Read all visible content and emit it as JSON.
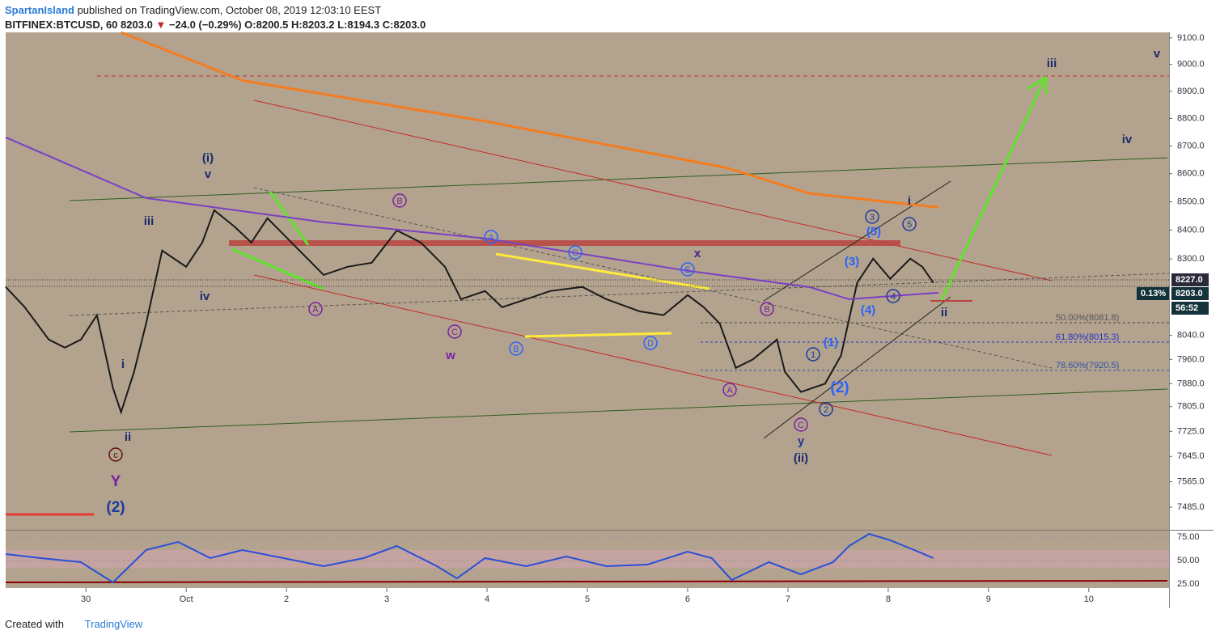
{
  "header": {
    "author": "SpartanIsland",
    "published": " published on TradingView.com, October 08, 2019 12:03:10 EEST",
    "symbol": "BITFINEX:BTCUSD, 60",
    "last": "8203.0",
    "arrow": "▼",
    "change": "−24.0 (−0.29%)",
    "open": "O:8200.5",
    "high": "H:8203.2",
    "low": "L:8194.3",
    "close": "C:8203.0"
  },
  "footer": {
    "created": "Created with",
    "brand": "TradingView"
  },
  "chart_data": {
    "type": "line",
    "log_scale": true,
    "background": "#b3a38e",
    "xlim": [
      -0.8,
      10.8
    ],
    "xticks": [
      {
        "value": 0,
        "label": "30"
      },
      {
        "value": 1,
        "label": "Oct"
      },
      {
        "value": 2,
        "label": "2"
      },
      {
        "value": 3,
        "label": "3"
      },
      {
        "value": 4,
        "label": "4"
      },
      {
        "value": 5,
        "label": "5"
      },
      {
        "value": 6,
        "label": "6"
      },
      {
        "value": 7,
        "label": "7"
      },
      {
        "value": 8,
        "label": "8"
      },
      {
        "value": 9,
        "label": "9"
      },
      {
        "value": 10,
        "label": "10"
      }
    ],
    "ylim": [
      7415,
      9121
    ],
    "yticks": [
      {
        "value": 9100,
        "label": "9100.0"
      },
      {
        "value": 9000,
        "label": "9000.0"
      },
      {
        "value": 8900,
        "label": "8900.0"
      },
      {
        "value": 8800,
        "label": "8800.0"
      },
      {
        "value": 8700,
        "label": "8700.0"
      },
      {
        "value": 8600,
        "label": "8600.0"
      },
      {
        "value": 8500,
        "label": "8500.0"
      },
      {
        "value": 8400,
        "label": "8400.0"
      },
      {
        "value": 8300,
        "label": "8300.0"
      },
      {
        "value": 8040,
        "label": "8040.0"
      },
      {
        "value": 7960,
        "label": "7960.0"
      },
      {
        "value": 7880,
        "label": "7880.0"
      },
      {
        "value": 7805,
        "label": "7805.0"
      },
      {
        "value": 7725,
        "label": "7725.0"
      },
      {
        "value": 7645,
        "label": "7645.0"
      },
      {
        "value": 7565,
        "label": "7565.0"
      },
      {
        "value": 7485,
        "label": "7485.0"
      }
    ],
    "series": [
      {
        "color": "#1a1a1a",
        "x": [
          -0.8,
          -0.61,
          -0.37,
          -0.21,
          -0.05,
          0.11,
          0.27,
          0.35,
          0.48,
          0.6,
          0.76,
          1.0,
          1.16,
          1.28,
          1.48,
          1.65,
          1.81,
          2.05,
          2.21,
          2.37,
          2.61,
          2.85,
          3.1,
          3.34,
          3.58,
          3.74,
          3.98,
          4.15,
          4.39,
          4.63,
          4.95,
          5.19,
          5.52,
          5.76,
          6.0,
          6.16,
          6.32,
          6.48,
          6.65,
          6.89,
          6.97,
          7.13,
          7.37,
          7.53,
          7.69,
          7.85,
          8.02,
          8.22,
          8.34,
          8.45
        ],
        "values": [
          8204,
          8135,
          8026,
          7999,
          8026,
          8108,
          7866,
          7787,
          7919,
          8080,
          8329,
          8273,
          8357,
          8470,
          8413,
          8357,
          8442,
          8357,
          8301,
          8245,
          8273,
          8287,
          8399,
          8357,
          8273,
          8162,
          8190,
          8135,
          8162,
          8190,
          8204,
          8162,
          8121,
          8108,
          8176,
          8135,
          8080,
          7932,
          7960,
          8026,
          7919,
          7853,
          7880,
          7973,
          8218,
          8301,
          8232,
          8301,
          8273,
          8218
        ]
      },
      {
        "color": "#f57c1f",
        "x": [
          0.35,
          1.56,
          3.98,
          6.4,
          7.21,
          8.5
        ],
        "values": [
          9121,
          8940,
          8790,
          8620,
          8530,
          8480
        ]
      },
      {
        "color": "#7b3fc4",
        "x": [
          -0.8,
          0.6,
          2.37,
          3.98,
          6.0,
          7.21,
          7.61,
          8.5
        ],
        "values": [
          8731,
          8513,
          8428,
          8371,
          8259,
          8204,
          8162,
          8184
        ]
      }
    ],
    "annotations": [
      {
        "text": "(i)",
        "color": "#1a2a6c"
      },
      {
        "text": "v",
        "color": "#1a2a6c"
      },
      {
        "text": "iii",
        "color": "#1a2a6c"
      },
      {
        "text": "iv",
        "color": "#1a2a6c"
      },
      {
        "text": "i",
        "color": "#1a2a6c"
      },
      {
        "text": "ii",
        "color": "#1a2a6c"
      },
      {
        "text": "c",
        "color": "#5d1010",
        "circle": true
      },
      {
        "text": "Y",
        "color": "#7b1fa2"
      },
      {
        "text": "(2)",
        "color": "#1a3a9c"
      },
      {
        "text": "B",
        "color": "#7b1fa2",
        "circle": true
      },
      {
        "text": "A",
        "color": "#2962ff",
        "circle": true
      },
      {
        "text": "C",
        "color": "#2962ff",
        "circle": true
      },
      {
        "text": "x",
        "color": "#4a1a8c"
      },
      {
        "text": "E",
        "color": "#2962ff",
        "circle": true
      },
      {
        "text": "A",
        "color": "#7b1fa2",
        "circle": true
      },
      {
        "text": "C",
        "color": "#7b1fa2",
        "circle": true
      },
      {
        "text": "w",
        "color": "#7b1fa2"
      },
      {
        "text": "B",
        "color": "#2962ff",
        "circle": true
      },
      {
        "text": "D",
        "color": "#2962ff",
        "circle": true
      },
      {
        "text": "B",
        "color": "#7b1fa2",
        "circle": true
      },
      {
        "text": "A",
        "color": "#7b1fa2",
        "circle": true
      },
      {
        "text": "1",
        "color": "#1a3a9c",
        "circle": true
      },
      {
        "text": "(1)",
        "color": "#2962ff"
      },
      {
        "text": "(2)",
        "color": "#2962ff"
      },
      {
        "text": "2",
        "color": "#1a3a9c",
        "circle": true
      },
      {
        "text": "C",
        "color": "#7b1fa2",
        "circle": true
      },
      {
        "text": "y",
        "color": "#1a3a9c"
      },
      {
        "text": "(ii)",
        "color": "#1a2a6c"
      },
      {
        "text": "3",
        "color": "#1a3a9c",
        "circle": true
      },
      {
        "text": "(5)",
        "color": "#2962ff"
      },
      {
        "text": "5",
        "color": "#1a3a9c",
        "circle": true
      },
      {
        "text": "i",
        "color": "#1a2a6c"
      },
      {
        "text": "(3)",
        "color": "#2962ff"
      },
      {
        "text": "4",
        "color": "#1a3a9c",
        "circle": true
      },
      {
        "text": "(4)",
        "color": "#2962ff"
      },
      {
        "text": "ii",
        "color": "#1a2a6c"
      },
      {
        "text": "iii",
        "color": "#1a2a6c"
      },
      {
        "text": "v",
        "color": "#1a2a6c"
      },
      {
        "text": "iv",
        "color": "#1a2a6c"
      }
    ],
    "fib_labels": [
      {
        "text": "50.00%(8081.8)",
        "color": "#555"
      },
      {
        "text": "61.80%(8015.3)",
        "color": "#2430c8"
      },
      {
        "text": "78.60%(7920.5)",
        "color": "#3050a8"
      }
    ],
    "price_tags": [
      {
        "text": "8227.0",
        "color": "#2a2a3a"
      },
      {
        "text": "0.13%",
        "color": "#14323a"
      },
      {
        "text": "8203.0",
        "color": "#14323a"
      },
      {
        "text": "56:52",
        "color": "#14323a"
      }
    ]
  },
  "rsi": {
    "type": "line",
    "ylim": [
      20.7,
      81.9
    ],
    "yticks": [
      {
        "value": 75,
        "label": "75.00"
      },
      {
        "value": 50,
        "label": "50.00"
      },
      {
        "value": 25,
        "label": "25.00"
      }
    ],
    "series": [
      {
        "color": "#2a4fd8",
        "x": [
          -0.8,
          -0.45,
          -0.05,
          0.27,
          0.6,
          0.92,
          1.24,
          1.56,
          1.97,
          2.37,
          2.77,
          3.1,
          3.5,
          3.7,
          3.98,
          4.39,
          4.79,
          5.19,
          5.6,
          6.0,
          6.24,
          6.44,
          6.81,
          7.13,
          7.45,
          7.61,
          7.81,
          8.02,
          8.26,
          8.45
        ],
        "values": [
          56.9,
          52.6,
          48.3,
          26.7,
          61.2,
          69.8,
          52.6,
          61.2,
          52.6,
          44,
          52.6,
          65.5,
          44,
          31,
          52.6,
          44,
          54.3,
          44,
          45.7,
          59.5,
          52.6,
          29.3,
          48.3,
          35.3,
          48.3,
          65.5,
          78.4,
          71.6,
          61.2,
          52.6
        ]
      }
    ]
  }
}
